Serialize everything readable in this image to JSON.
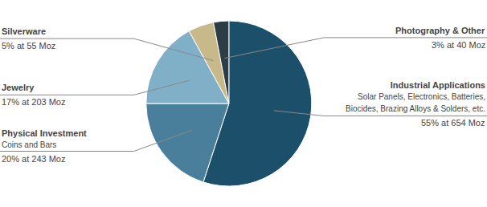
{
  "chart_data": {
    "type": "pie",
    "categories": [
      "Industrial Applications",
      "Physical Investment",
      "Jewelry",
      "Silverware",
      "Photography & Other"
    ],
    "values": [
      55,
      20,
      17,
      5,
      3
    ],
    "value_labels": [
      "55% at 654 Moz",
      "20% at 243 Moz",
      "17% at 203 Moz",
      "5% at 55 Moz",
      "3% at 40 Moz"
    ],
    "colors": [
      "#1b4f6a",
      "#4a7f9c",
      "#7fb0c8",
      "#c8b98a",
      "#2d3d45"
    ],
    "annotations": [
      {
        "category": "Industrial Applications",
        "text": [
          "Solar Panels, Electronics, Batteries,",
          "Biocides, Brazing Alloys & Solders, etc."
        ]
      },
      {
        "category": "Physical Investment",
        "text": [
          "Coins and Bars"
        ]
      }
    ]
  }
}
